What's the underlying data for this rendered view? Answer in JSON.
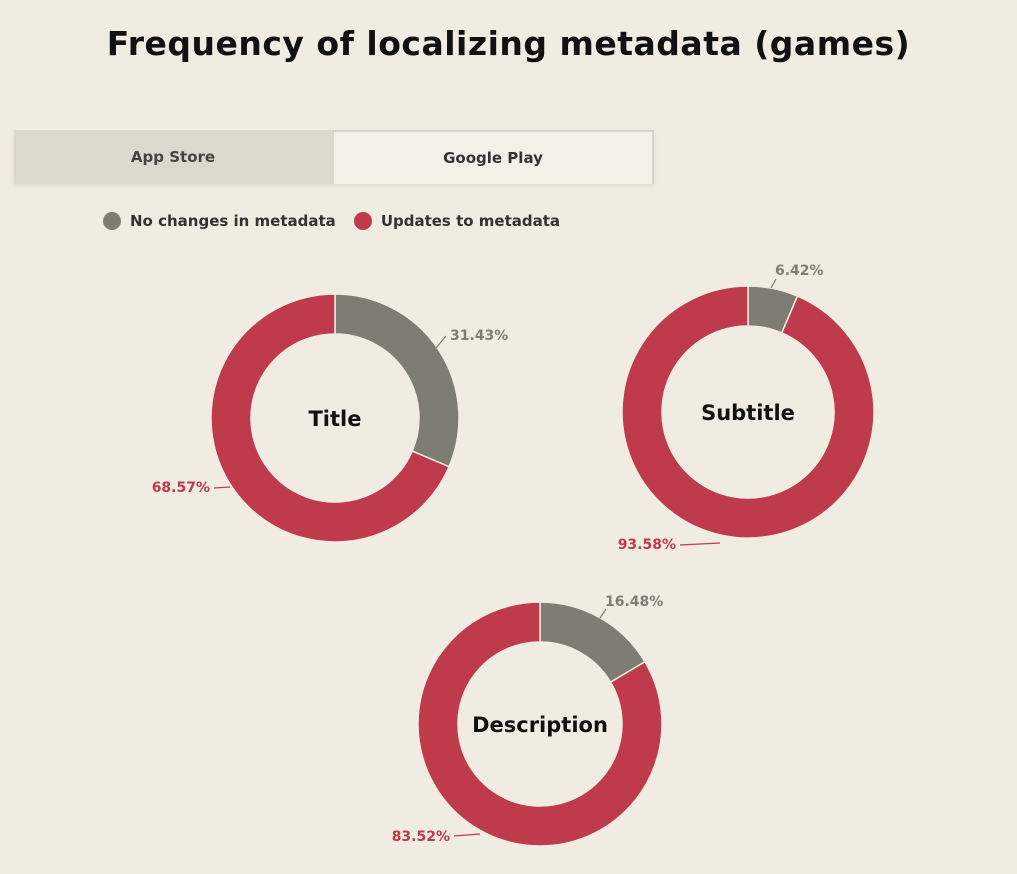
{
  "title": "Frequency of localizing metadata (games)",
  "tabs": [
    {
      "label": "App Store",
      "active": false
    },
    {
      "label": "Google Play",
      "active": true
    }
  ],
  "legend": [
    {
      "label": "No changes in metadata",
      "color": "#7d7d74"
    },
    {
      "label": "Updates to metadata",
      "color": "#bf3a4b"
    }
  ],
  "chart_data": [
    {
      "type": "pie",
      "title": "Title",
      "categories": [
        "No changes in metadata",
        "Updates to metadata"
      ],
      "values": [
        31.43,
        68.57
      ],
      "labels": [
        "31.43%",
        "68.57%"
      ],
      "colors": [
        "#7d7d74",
        "#bf3a4b"
      ]
    },
    {
      "type": "pie",
      "title": "Subtitle",
      "categories": [
        "No changes in metadata",
        "Updates to metadata"
      ],
      "values": [
        6.42,
        93.58
      ],
      "labels": [
        "6.42%",
        "93.58%"
      ],
      "colors": [
        "#7d7d74",
        "#bf3a4b"
      ]
    },
    {
      "type": "pie",
      "title": "Description",
      "categories": [
        "No changes in metadata",
        "Updates to metadata"
      ],
      "values": [
        16.48,
        83.52
      ],
      "labels": [
        "16.48%",
        "83.52%"
      ],
      "colors": [
        "#7d7d74",
        "#bf3a4b"
      ]
    }
  ]
}
